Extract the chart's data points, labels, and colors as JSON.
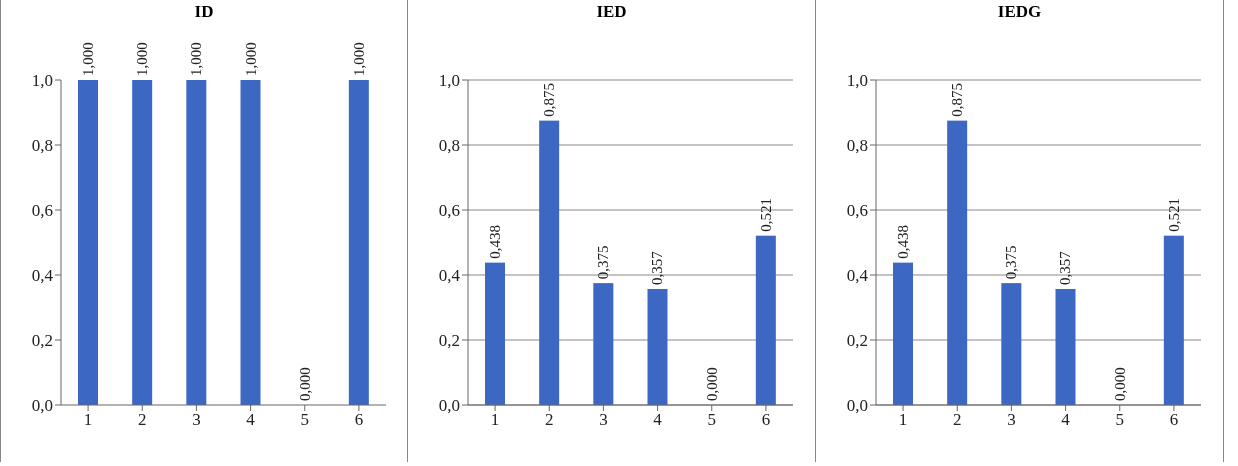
{
  "chart_data": [
    {
      "type": "bar",
      "title": "ID",
      "categories": [
        "1",
        "2",
        "3",
        "4",
        "5",
        "6"
      ],
      "values": [
        1,
        1,
        1,
        1,
        0,
        1
      ],
      "value_labels": [
        "1,000",
        "1,000",
        "1,000",
        "1,000",
        "0,000",
        "1,000"
      ],
      "color": "#3c68c4",
      "ylim": [
        0,
        1
      ],
      "yticks": [
        {
          "value": 0,
          "label": "0,0"
        },
        {
          "value": 0.2,
          "label": "0,2"
        },
        {
          "value": 0.4,
          "label": "0,4"
        },
        {
          "value": 0.6,
          "label": "0,6"
        },
        {
          "value": 0.8,
          "label": "0,8"
        },
        {
          "value": 1,
          "label": "1,0"
        }
      ],
      "grid": false,
      "legend": false
    },
    {
      "type": "bar",
      "title": "IED",
      "categories": [
        "1",
        "2",
        "3",
        "4",
        "5",
        "6"
      ],
      "values": [
        0.438,
        0.875,
        0.375,
        0.357,
        0,
        0.521
      ],
      "value_labels": [
        "0,438",
        "0,875",
        "0,375",
        "0,357",
        "0,000",
        "0,521"
      ],
      "color": "#3c68c4",
      "ylim": [
        0,
        1
      ],
      "yticks": [
        {
          "value": 0,
          "label": "0,0"
        },
        {
          "value": 0.2,
          "label": "0,2"
        },
        {
          "value": 0.4,
          "label": "0,4"
        },
        {
          "value": 0.6,
          "label": "0,6"
        },
        {
          "value": 0.8,
          "label": "0,8"
        },
        {
          "value": 1,
          "label": "1,0"
        }
      ],
      "grid": "y",
      "legend": false
    },
    {
      "type": "bar",
      "title": "IEDG",
      "categories": [
        "1",
        "2",
        "3",
        "4",
        "5",
        "6"
      ],
      "values": [
        0.438,
        0.875,
        0.375,
        0.357,
        0,
        0.521
      ],
      "value_labels": [
        "0,438",
        "0,875",
        "0,375",
        "0,357",
        "0,000",
        "0,521"
      ],
      "color": "#3c68c4",
      "ylim": [
        0,
        1
      ],
      "yticks": [
        {
          "value": 0,
          "label": "0,0"
        },
        {
          "value": 0.2,
          "label": "0,2"
        },
        {
          "value": 0.4,
          "label": "0,4"
        },
        {
          "value": 0.6,
          "label": "0,6"
        },
        {
          "value": 0.8,
          "label": "0,8"
        },
        {
          "value": 1,
          "label": "1,0"
        }
      ],
      "grid": "y",
      "legend": false
    }
  ]
}
